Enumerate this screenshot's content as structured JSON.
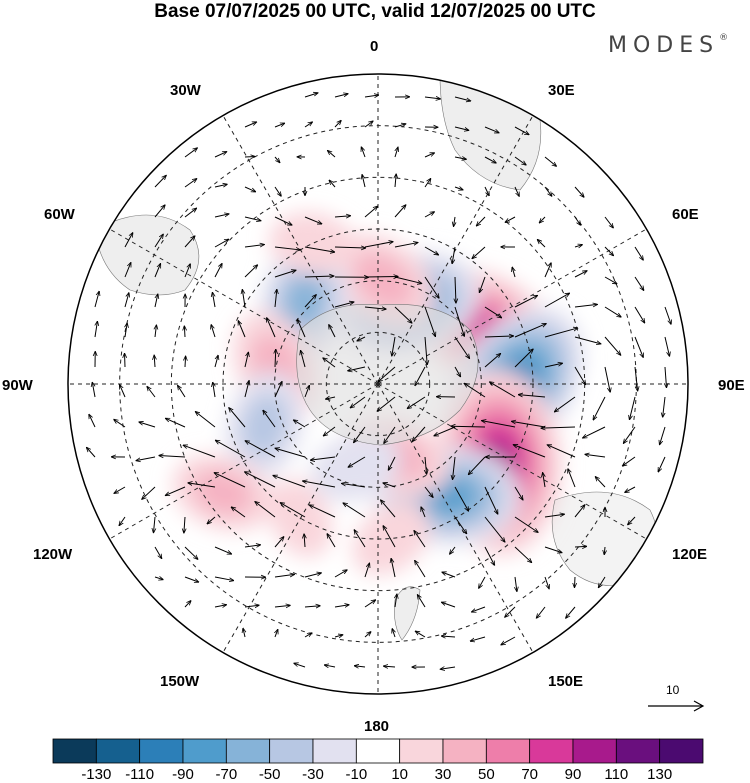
{
  "title": "Base 07/07/2025 00 UTC, valid 12/07/2025 00 UTC",
  "brand": "MODES",
  "brand_mark": "®",
  "longitude_labels": {
    "lon_0": "0",
    "lon_30e": "30E",
    "lon_60e": "60E",
    "lon_90e": "90E",
    "lon_120e": "120E",
    "lon_150e": "150E",
    "lon_180": "180",
    "lon_150w": "150W",
    "lon_120w": "120W",
    "lon_90w": "90W",
    "lon_60w": "60W",
    "lon_30w": "30W"
  },
  "reference_vector_label": "10",
  "colorbar": {
    "ticks": [
      "-130",
      "-110",
      "-90",
      "-70",
      "-50",
      "-30",
      "-10",
      "10",
      "30",
      "50",
      "70",
      "90",
      "110",
      "130"
    ],
    "colors": [
      "#0b3a5a",
      "#15608f",
      "#2c7fb8",
      "#4f9ccc",
      "#86b3d8",
      "#b7c7e3",
      "#e2e1f0",
      "#ffffff",
      "#f9d6dc",
      "#f5b2c2",
      "#ee7eaa",
      "#d9399a",
      "#a81a8c",
      "#6a0f7e",
      "#4b0a70"
    ]
  },
  "anomaly_centers": [
    {
      "lon": 62,
      "lat": -55,
      "value": 90
    },
    {
      "lon": 90,
      "lat": -50,
      "value": -100
    },
    {
      "lon": 123,
      "lat": -48,
      "value": 115
    },
    {
      "lon": 148,
      "lat": -52,
      "value": -80
    },
    {
      "lon": 20,
      "lat": -65,
      "value": -80
    },
    {
      "lon": 3,
      "lat": -60,
      "value": 50
    },
    {
      "lon": -42,
      "lat": -58,
      "value": -60
    },
    {
      "lon": -25,
      "lat": -45,
      "value": 25
    },
    {
      "lon": -80,
      "lat": -60,
      "value": 50
    },
    {
      "lon": -110,
      "lat": -55,
      "value": -45
    },
    {
      "lon": -125,
      "lat": -35,
      "value": 40
    },
    {
      "lon": 165,
      "lat": -68,
      "value": 45
    },
    {
      "lon": -165,
      "lat": -65,
      "value": -30
    },
    {
      "lon": -150,
      "lat": -45,
      "value": 20
    },
    {
      "lon": 175,
      "lat": -45,
      "value": 25
    }
  ]
}
